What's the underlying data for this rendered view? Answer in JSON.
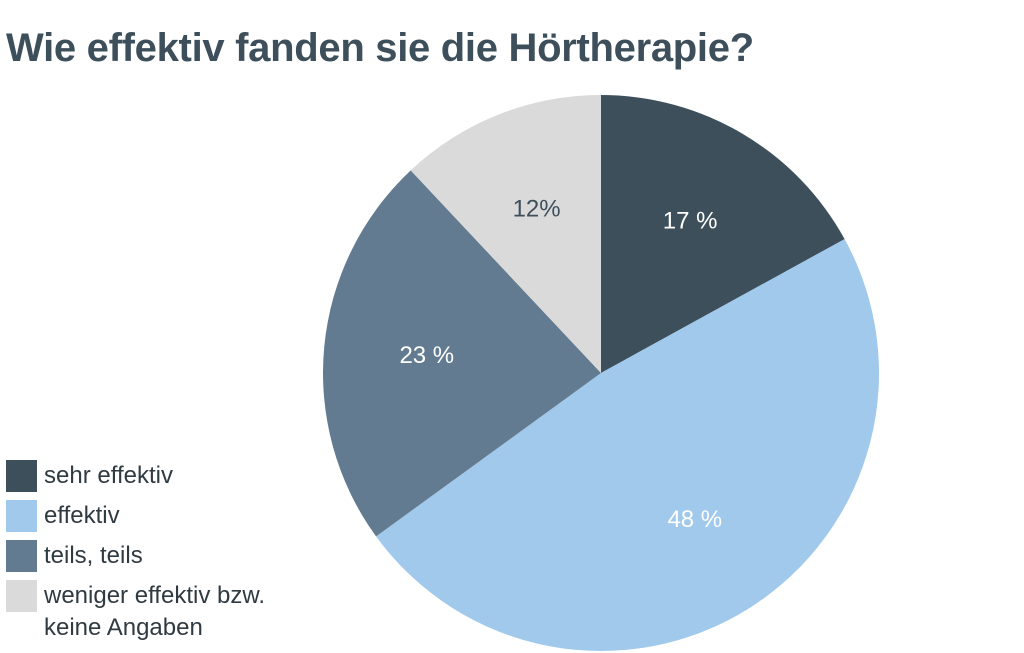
{
  "title": "Wie effektiv fanden sie die Hörtherapie?",
  "colors": {
    "title": "#3e4f5c",
    "legend_text": "#303a41"
  },
  "chart_data": {
    "type": "pie",
    "title": "Wie effektiv fanden sie die Hörtherapie?",
    "start_angle_deg": 0,
    "direction": "clockwise",
    "legend_position": "bottom-left",
    "slices": [
      {
        "name": "sehr effektiv",
        "value": 17,
        "label": "17 %",
        "color": "#3e4f5c",
        "label_color": "#ffffff"
      },
      {
        "name": "effektiv",
        "value": 48,
        "label": "48 %",
        "color": "#a0c9ec",
        "label_color": "#ffffff"
      },
      {
        "name": "teils, teils",
        "value": 23,
        "label": "23 %",
        "color": "#637b90",
        "label_color": "#ffffff"
      },
      {
        "name": "weniger effektiv bzw. keine Angaben",
        "value": 12,
        "label": "12%",
        "color": "#dadada",
        "label_color": "#3e4f5c"
      }
    ]
  },
  "legend": {
    "items": [
      {
        "label": "sehr effektiv"
      },
      {
        "label": "effektiv"
      },
      {
        "label": "teils, teils"
      },
      {
        "label": "weniger effektiv bzw. keine Angaben"
      }
    ]
  }
}
